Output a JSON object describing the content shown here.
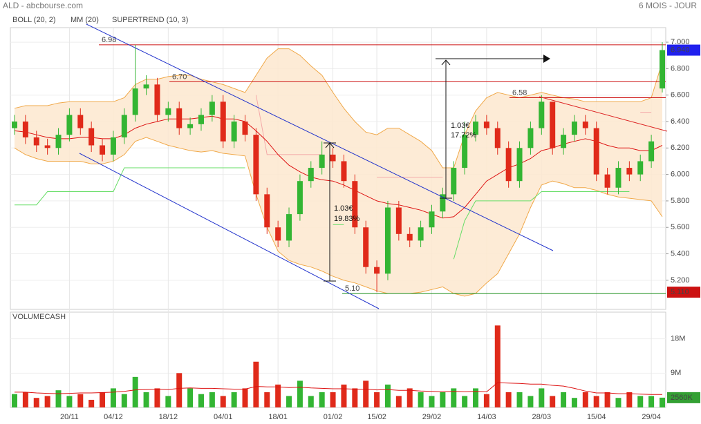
{
  "chart_data": {
    "type": "candlestick",
    "title": "ALD - abcbourse.com",
    "period": "6 MOIS - JOUR",
    "categories": [
      null,
      null,
      null,
      null,
      null,
      "20/11",
      null,
      null,
      null,
      "04/12",
      null,
      null,
      null,
      null,
      "18/12",
      null,
      null,
      null,
      null,
      "04/01",
      null,
      null,
      null,
      null,
      "18/01",
      null,
      null,
      null,
      null,
      "01/02",
      null,
      null,
      null,
      "15/02",
      null,
      null,
      null,
      null,
      "29/02",
      null,
      null,
      null,
      null,
      "14/03",
      null,
      null,
      null,
      null,
      "28/03",
      null,
      null,
      null,
      null,
      "15/04",
      null,
      null,
      null,
      null,
      "29/04",
      null
    ],
    "open": [
      6.35,
      6.4,
      6.28,
      6.22,
      6.2,
      6.3,
      6.45,
      6.35,
      6.22,
      6.15,
      6.28,
      6.45,
      6.65,
      6.68,
      6.45,
      6.5,
      6.35,
      6.38,
      6.45,
      6.55,
      6.25,
      6.4,
      6.3,
      5.85,
      5.6,
      5.5,
      5.7,
      5.95,
      6.05,
      6.15,
      6.1,
      5.95,
      5.6,
      5.3,
      5.25,
      5.75,
      5.55,
      5.5,
      5.6,
      5.72,
      5.85,
      6.05,
      6.3,
      6.4,
      6.35,
      6.2,
      5.95,
      6.2,
      6.35,
      6.55,
      6.2,
      6.3,
      6.4,
      6.35,
      6.0,
      5.9,
      6.05,
      6.0,
      6.1,
      6.65
    ],
    "high": [
      6.45,
      6.45,
      6.33,
      6.27,
      6.35,
      6.5,
      6.5,
      6.4,
      6.27,
      6.33,
      6.5,
      6.98,
      6.75,
      6.73,
      6.55,
      6.55,
      6.43,
      6.5,
      6.6,
      6.6,
      6.45,
      6.45,
      6.35,
      5.9,
      5.65,
      5.75,
      6.0,
      6.1,
      6.25,
      6.2,
      6.15,
      6.0,
      5.65,
      5.35,
      5.8,
      5.8,
      5.6,
      5.65,
      5.77,
      5.9,
      6.1,
      6.4,
      6.45,
      6.45,
      6.4,
      6.25,
      6.25,
      6.4,
      6.6,
      6.55,
      6.35,
      6.45,
      6.45,
      6.4,
      6.05,
      6.1,
      6.1,
      6.15,
      6.3,
      7.0
    ],
    "low": [
      6.3,
      6.23,
      6.17,
      6.15,
      6.15,
      6.25,
      6.3,
      6.17,
      6.1,
      6.1,
      6.23,
      6.4,
      6.6,
      6.4,
      6.4,
      6.3,
      6.3,
      6.33,
      6.4,
      6.2,
      6.2,
      6.25,
      5.8,
      5.55,
      5.45,
      5.45,
      5.65,
      5.9,
      6.0,
      6.05,
      5.9,
      5.55,
      5.25,
      5.11,
      5.2,
      5.5,
      5.45,
      5.45,
      5.55,
      5.67,
      5.8,
      6.0,
      6.25,
      6.3,
      6.15,
      5.9,
      5.9,
      6.15,
      6.3,
      6.15,
      6.15,
      6.25,
      6.3,
      5.95,
      5.85,
      5.85,
      5.95,
      5.95,
      6.05,
      6.62
    ],
    "close": [
      6.4,
      6.28,
      6.22,
      6.2,
      6.3,
      6.45,
      6.35,
      6.22,
      6.15,
      6.28,
      6.45,
      6.65,
      6.68,
      6.45,
      6.5,
      6.35,
      6.38,
      6.45,
      6.55,
      6.25,
      6.4,
      6.3,
      5.85,
      5.6,
      5.5,
      5.7,
      5.95,
      6.05,
      6.15,
      6.1,
      5.95,
      5.6,
      5.3,
      5.25,
      5.75,
      5.55,
      5.5,
      5.6,
      5.72,
      5.85,
      6.05,
      6.3,
      6.4,
      6.35,
      6.2,
      5.95,
      6.2,
      6.35,
      6.55,
      6.2,
      6.3,
      6.4,
      6.35,
      6.0,
      5.9,
      6.05,
      6.0,
      6.1,
      6.25,
      6.94
    ],
    "up_color": "#33b533",
    "down_color": "#e02a1a",
    "ylim": [
      4.98,
      7.11
    ],
    "yticks": [
      {
        "value": 7.0,
        "label": "7.000"
      },
      {
        "value": 6.8,
        "label": "6.800"
      },
      {
        "value": 6.6,
        "label": "6.600"
      },
      {
        "value": 6.4,
        "label": "6.400"
      },
      {
        "value": 6.2,
        "label": "6.200"
      },
      {
        "value": 6.0,
        "label": "6.000"
      },
      {
        "value": 5.8,
        "label": "5.800"
      },
      {
        "value": 5.6,
        "label": "5.600"
      },
      {
        "value": 5.4,
        "label": "5.400"
      },
      {
        "value": 5.2,
        "label": "5.200"
      }
    ],
    "grid": true,
    "boll": {
      "name": "BOLL (20, 2)",
      "color": "#f0a848",
      "fill": "#fde7cf",
      "upper": [
        6.5,
        6.52,
        6.52,
        6.52,
        6.54,
        6.55,
        6.55,
        6.55,
        6.55,
        6.55,
        6.58,
        6.68,
        6.72,
        6.72,
        6.74,
        6.75,
        6.75,
        6.72,
        6.7,
        6.68,
        6.65,
        6.62,
        6.75,
        6.88,
        6.95,
        6.95,
        6.9,
        6.82,
        6.75,
        6.62,
        6.5,
        6.4,
        6.32,
        6.3,
        6.35,
        6.35,
        6.3,
        6.25,
        6.18,
        6.05,
        6.05,
        6.3,
        6.48,
        6.58,
        6.62,
        6.6,
        6.58,
        6.6,
        6.62,
        6.6,
        6.58,
        6.57,
        6.55,
        6.55,
        6.55,
        6.55,
        6.55,
        6.55,
        6.58,
        6.85
      ],
      "lower": [
        6.2,
        6.15,
        6.12,
        6.1,
        6.1,
        6.1,
        6.1,
        6.08,
        6.08,
        6.1,
        6.15,
        6.25,
        6.28,
        6.25,
        6.22,
        6.2,
        6.18,
        6.17,
        6.18,
        6.16,
        6.15,
        6.14,
        5.85,
        5.6,
        5.42,
        5.35,
        5.32,
        5.3,
        5.27,
        5.23,
        5.2,
        5.18,
        5.15,
        5.12,
        5.1,
        5.1,
        5.1,
        5.11,
        5.13,
        5.15,
        5.1,
        5.08,
        5.1,
        5.18,
        5.25,
        5.4,
        5.55,
        5.75,
        5.92,
        5.95,
        5.93,
        5.9,
        5.9,
        5.88,
        5.85,
        5.83,
        5.82,
        5.81,
        5.8,
        5.68
      ]
    },
    "mm": {
      "name": "MM (20)",
      "color": "#dd1111",
      "values": [
        6.33,
        6.32,
        6.3,
        6.28,
        6.27,
        6.27,
        6.28,
        6.28,
        6.27,
        6.27,
        6.3,
        6.35,
        6.38,
        6.4,
        6.42,
        6.42,
        6.42,
        6.43,
        6.44,
        6.42,
        6.42,
        6.4,
        6.33,
        6.25,
        6.15,
        6.07,
        6.02,
        5.98,
        5.96,
        5.95,
        5.92,
        5.88,
        5.84,
        5.8,
        5.78,
        5.77,
        5.75,
        5.73,
        5.7,
        5.67,
        5.68,
        5.75,
        5.85,
        5.95,
        6.0,
        6.05,
        6.08,
        6.12,
        6.18,
        6.2,
        6.23,
        6.25,
        6.27,
        6.25,
        6.22,
        6.2,
        6.2,
        6.18,
        6.18,
        6.22
      ]
    },
    "supertrend": {
      "name": "SUPERTREND (10, 3)",
      "color": "#f4a8a8",
      "up_color": "#66dd66",
      "up": [
        5.77,
        5.77,
        5.77,
        5.87,
        5.87,
        5.87,
        5.87,
        5.87,
        5.87,
        5.87,
        6.05,
        6.05,
        6.05,
        6.05,
        6.05,
        6.05,
        6.05,
        6.05,
        6.05,
        6.05,
        6.05,
        6.05,
        null,
        null,
        null,
        null,
        null,
        null,
        null,
        5.62,
        5.62,
        null,
        null,
        null,
        null,
        null,
        null,
        null,
        null,
        null,
        5.36,
        5.65,
        5.8,
        5.8,
        5.8,
        5.8,
        5.8,
        5.8,
        5.87,
        5.87,
        5.87,
        5.87,
        5.87,
        5.87,
        5.87,
        5.87,
        5.87,
        null,
        null,
        null
      ],
      "down": [
        null,
        null,
        null,
        null,
        null,
        null,
        null,
        null,
        null,
        null,
        null,
        null,
        null,
        null,
        null,
        null,
        null,
        null,
        null,
        null,
        null,
        null,
        6.6,
        6.15,
        6.15,
        6.15,
        6.15,
        6.15,
        6.15,
        null,
        null,
        null,
        null,
        5.98,
        5.98,
        5.98,
        5.98,
        5.98,
        5.98,
        5.98,
        null,
        null,
        null,
        null,
        null,
        null,
        null,
        null,
        null,
        null,
        null,
        null,
        null,
        null,
        null,
        null,
        null,
        6.47,
        6.47,
        null
      ]
    },
    "levels": [
      {
        "value": 6.98,
        "label": "6.98",
        "color": "#cc1111"
      },
      {
        "value": 6.7,
        "label": "6.70",
        "color": "#cc1111"
      },
      {
        "value": 6.58,
        "label": "6.58",
        "color": "#cc1111"
      },
      {
        "value": 5.1,
        "label": "5.10",
        "color": "#118811"
      }
    ],
    "markers": [
      {
        "value": 6.94,
        "label": "6.940",
        "color": "#2020ee"
      },
      {
        "value": 5.11,
        "label": "5.110",
        "color": "#cc1111"
      }
    ],
    "annotations": [
      "1.03€",
      "19.83%",
      "1.03€",
      "17.72%"
    ],
    "volume": {
      "name": "VOLUMECASH",
      "name_color": "#33a033",
      "ma_color": "#dd1111",
      "values": [
        3.5,
        4,
        2.5,
        3,
        4.5,
        3,
        3.5,
        2,
        4,
        5,
        3.5,
        8,
        4,
        5,
        3,
        9,
        5,
        3.5,
        4,
        3,
        4,
        5,
        12,
        4,
        6,
        3,
        7,
        3,
        4,
        4,
        6,
        5,
        7,
        4,
        6,
        3,
        5,
        4,
        3,
        4,
        5,
        3,
        5,
        3.5,
        21.5,
        4,
        4,
        3,
        5,
        3,
        4,
        2.5,
        4,
        3,
        4,
        2.5,
        4,
        3,
        3,
        2.56
      ],
      "ma": [
        4,
        4,
        3.8,
        3.7,
        3.6,
        3.7,
        3.8,
        3.8,
        3.9,
        4,
        4.2,
        4.6,
        4.7,
        4.8,
        4.7,
        5,
        5.1,
        5,
        5,
        4.9,
        4.8,
        4.8,
        5.5,
        5.4,
        5.4,
        5.2,
        5.3,
        5.1,
        5,
        4.9,
        4.9,
        4.8,
        4.8,
        4.6,
        4.7,
        4.5,
        4.5,
        4.3,
        4.2,
        4.1,
        4.2,
        4.1,
        4.2,
        4.1,
        6.5,
        6.4,
        6.3,
        6.1,
        6.1,
        5.8,
        5.6,
        5,
        4.3,
        3.8,
        3.8,
        3.6,
        3.6,
        3.5,
        3.4,
        3.4
      ],
      "ylim": [
        0,
        25
      ],
      "yticks": [
        {
          "value": 9,
          "label": "9M"
        },
        {
          "value": 18,
          "label": "18M"
        }
      ],
      "last": {
        "value": 2.56,
        "label": "2560K",
        "color": "#33a033"
      }
    }
  }
}
